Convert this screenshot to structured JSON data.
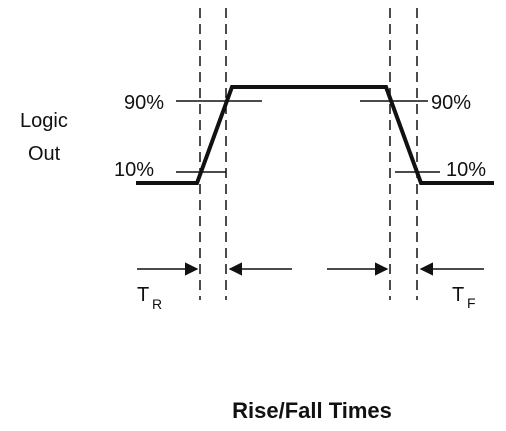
{
  "figure": {
    "title": "Rise/Fall Times",
    "signal_label_line1": "Logic",
    "signal_label_line2": "Out",
    "level_high_left": "90%",
    "level_low_left": "10%",
    "level_high_right": "90%",
    "level_low_right": "10%",
    "rise_time_main": "T",
    "rise_time_sub": "R",
    "fall_time_main": "T",
    "fall_time_sub": "F"
  },
  "colors": {
    "line": "#111111",
    "background": "#ffffff"
  }
}
